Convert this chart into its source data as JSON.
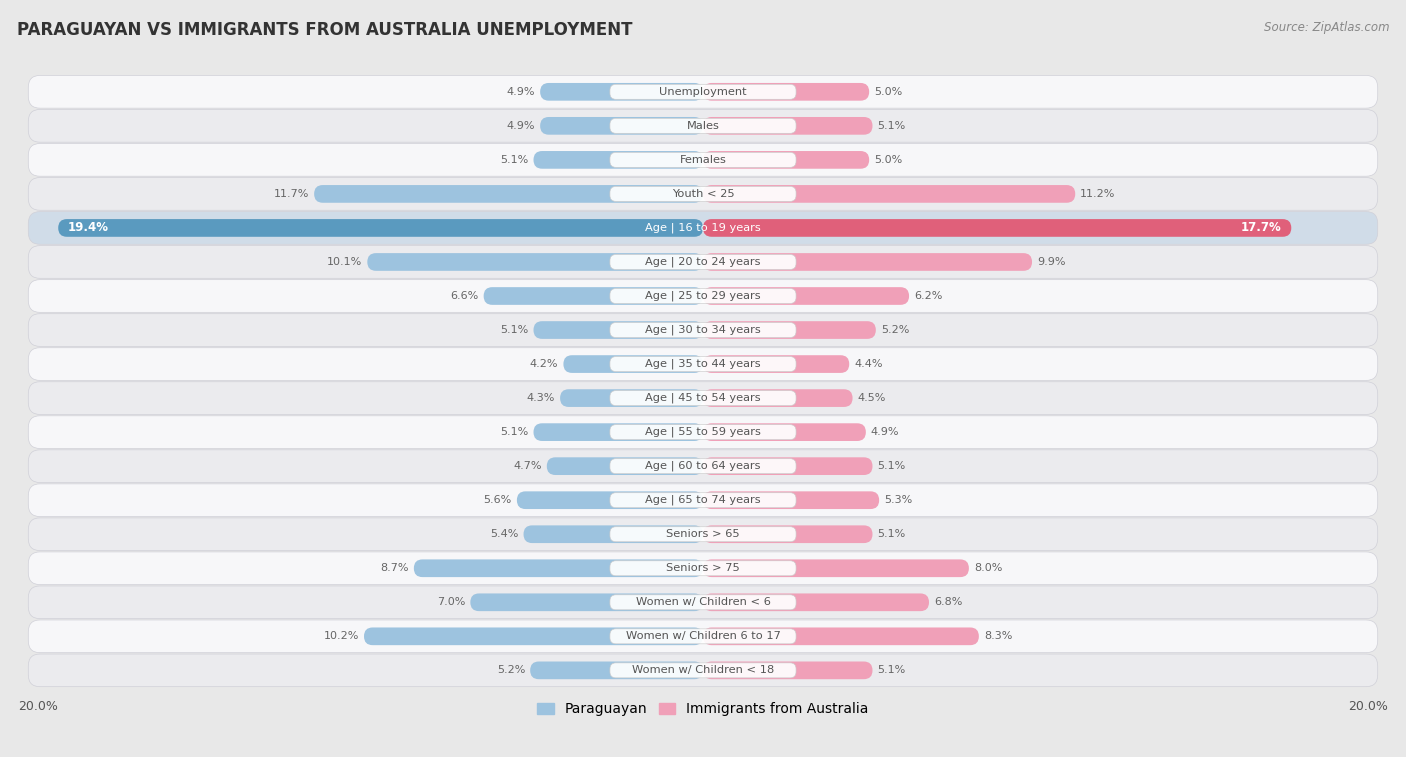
{
  "title": "PARAGUAYAN VS IMMIGRANTS FROM AUSTRALIA UNEMPLOYMENT",
  "source": "Source: ZipAtlas.com",
  "categories": [
    "Unemployment",
    "Males",
    "Females",
    "Youth < 25",
    "Age | 16 to 19 years",
    "Age | 20 to 24 years",
    "Age | 25 to 29 years",
    "Age | 30 to 34 years",
    "Age | 35 to 44 years",
    "Age | 45 to 54 years",
    "Age | 55 to 59 years",
    "Age | 60 to 64 years",
    "Age | 65 to 74 years",
    "Seniors > 65",
    "Seniors > 75",
    "Women w/ Children < 6",
    "Women w/ Children 6 to 17",
    "Women w/ Children < 18"
  ],
  "paraguayan": [
    4.9,
    4.9,
    5.1,
    11.7,
    19.4,
    10.1,
    6.6,
    5.1,
    4.2,
    4.3,
    5.1,
    4.7,
    5.6,
    5.4,
    8.7,
    7.0,
    10.2,
    5.2
  ],
  "australia": [
    5.0,
    5.1,
    5.0,
    11.2,
    17.7,
    9.9,
    6.2,
    5.2,
    4.4,
    4.5,
    4.9,
    5.1,
    5.3,
    5.1,
    8.0,
    6.8,
    8.3,
    5.1
  ],
  "paraguayan_color": "#9dc3df",
  "australia_color": "#f0a0b8",
  "highlight_paraguayan_color": "#5a9abf",
  "highlight_australia_color": "#e0607a",
  "background_color": "#e8e8e8",
  "row_bg_white": "#f7f7f9",
  "row_bg_light": "#ebebee",
  "max_val": 20.0,
  "legend_paraguayan": "Paraguayan",
  "legend_australia": "Immigrants from Australia",
  "label_color": "#555555",
  "highlight_label_color": "#ffffff",
  "value_color": "#666666",
  "highlight_value_color": "#444444"
}
